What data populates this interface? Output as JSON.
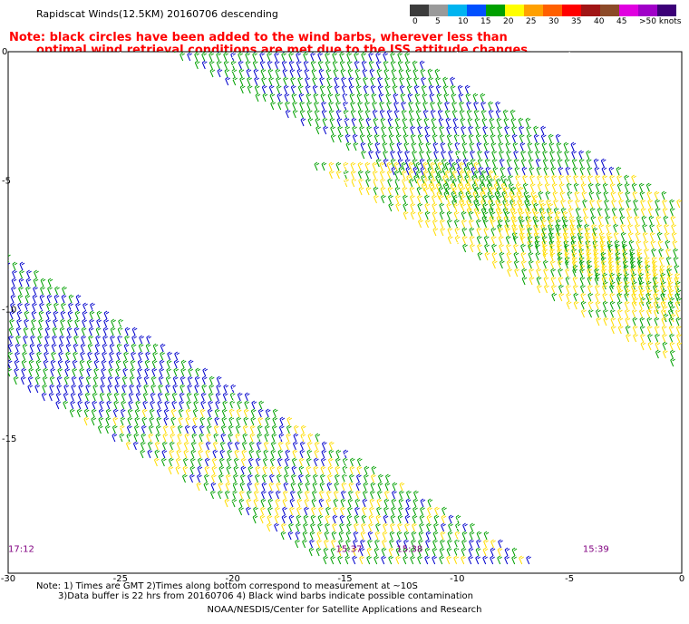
{
  "title": "Rapidscat Winds(12.5KM) 20160706 descending",
  "note": {
    "line1": "Note: black circles have been added to the wind barbs, wherever less than",
    "line2": "optimal wind retrieval conditions are met due to the ISS attitude changes."
  },
  "colorbar": {
    "colors": [
      "#3c3c3c",
      "#9a9a9a",
      "#00b4f0",
      "#0050ff",
      "#00a000",
      "#ffff00",
      "#ffa000",
      "#ff6000",
      "#ff0000",
      "#a01414",
      "#8c4a28",
      "#e000e0",
      "#a000c8",
      "#3c0078"
    ],
    "labels": [
      "0",
      "5",
      "10",
      "15",
      "20",
      "25",
      "30",
      "35",
      "40",
      "45",
      ">50 knots"
    ],
    "label_cells": [
      0,
      1,
      2,
      3,
      4,
      5,
      6,
      7,
      8,
      9,
      10
    ]
  },
  "map": {
    "lon_ticks": [
      -30,
      -25,
      -20,
      -15,
      -10,
      -5,
      0
    ],
    "lon_labels": [
      "-30",
      "-25",
      "-20",
      "-15",
      "-10",
      "-5",
      "0"
    ],
    "lat_ticks": [
      0,
      -5,
      -10,
      -15
    ],
    "lat_labels": [
      "0",
      "-5",
      "-10",
      "-15"
    ],
    "extent": {
      "lon": [
        -30,
        0
      ],
      "lat": [
        -20,
        0
      ]
    },
    "pass_times": [
      {
        "label": "17:12",
        "lon": -30,
        "lat": -19.3
      },
      {
        "label": "15:37",
        "lon": -15,
        "lat": -19.3
      },
      {
        "label": "15:38",
        "lon": -12.3,
        "lat": -19.3
      },
      {
        "label": "15:39",
        "lon": -4,
        "lat": -19.3
      }
    ],
    "gridlines": true,
    "legend": "top-right"
  },
  "footer": {
    "note1": "Note: 1) Times are GMT 2)Times along bottom correspond to measurement at ~10S",
    "note2": "3)Data buffer is 22 hrs from 20160706 4) Black wind barbs indicate possible contamination",
    "credit": "NOAA/NESDIS/Center for Satellite Applications and Research"
  }
}
